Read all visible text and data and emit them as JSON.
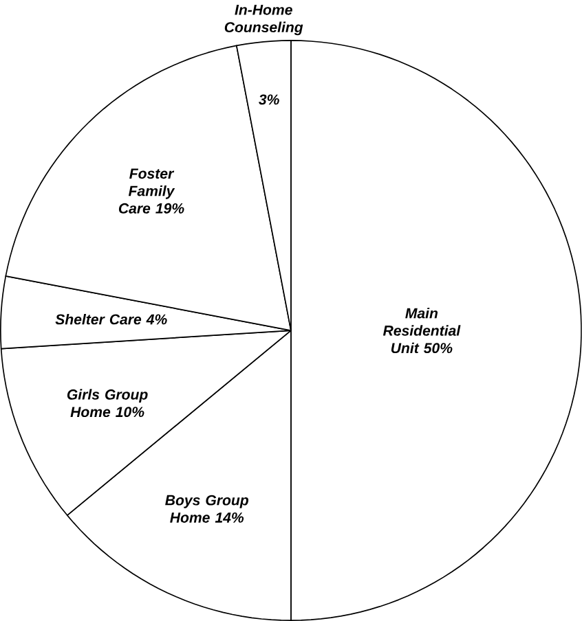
{
  "chart_data": {
    "type": "pie",
    "categories": [
      "Main Residential Unit",
      "Boys Group Home",
      "Girls Group Home",
      "Shelter Care",
      "Foster Family Care",
      "In-Home Counseling"
    ],
    "values": [
      50,
      14,
      10,
      4,
      19,
      3
    ],
    "value_labels": [
      "50%",
      "14%",
      "10%",
      "4%",
      "19%",
      "3%"
    ],
    "colors": [
      "#ffffff",
      "#ffffff",
      "#ffffff",
      "#ffffff",
      "#ffffff",
      "#ffffff"
    ]
  }
}
